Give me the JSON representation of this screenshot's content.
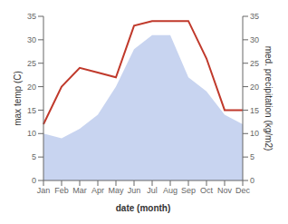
{
  "chart_data": {
    "type": "area",
    "xlabel": "date (month)",
    "ylabel": "max temp (C)",
    "y2label": "med. precipitation (kg/m2)",
    "categories": [
      "Jan",
      "Feb",
      "Mar",
      "Apr",
      "May",
      "Jun",
      "Jul",
      "Aug",
      "Sep",
      "Oct",
      "Nov",
      "Dec"
    ],
    "series": [
      {
        "name": "max temp (C)",
        "type": "area",
        "color": "#c8d4f0",
        "values": [
          10,
          9,
          11,
          14,
          20,
          28,
          31,
          31,
          22,
          19,
          14,
          12
        ]
      },
      {
        "name": "med. precipitation (kg/m2)",
        "type": "line",
        "axis": "y2",
        "color": "#c0392b",
        "values": [
          12,
          20,
          24,
          23,
          22,
          33,
          34,
          34,
          34,
          26,
          15,
          15
        ]
      }
    ],
    "ylim": [
      0,
      35
    ],
    "yticks": [
      0,
      5,
      10,
      15,
      20,
      25,
      30,
      35
    ],
    "y2lim": [
      0,
      35
    ],
    "y2ticks": [
      0,
      5,
      10,
      15,
      20,
      25,
      30,
      35
    ],
    "grid": false
  }
}
